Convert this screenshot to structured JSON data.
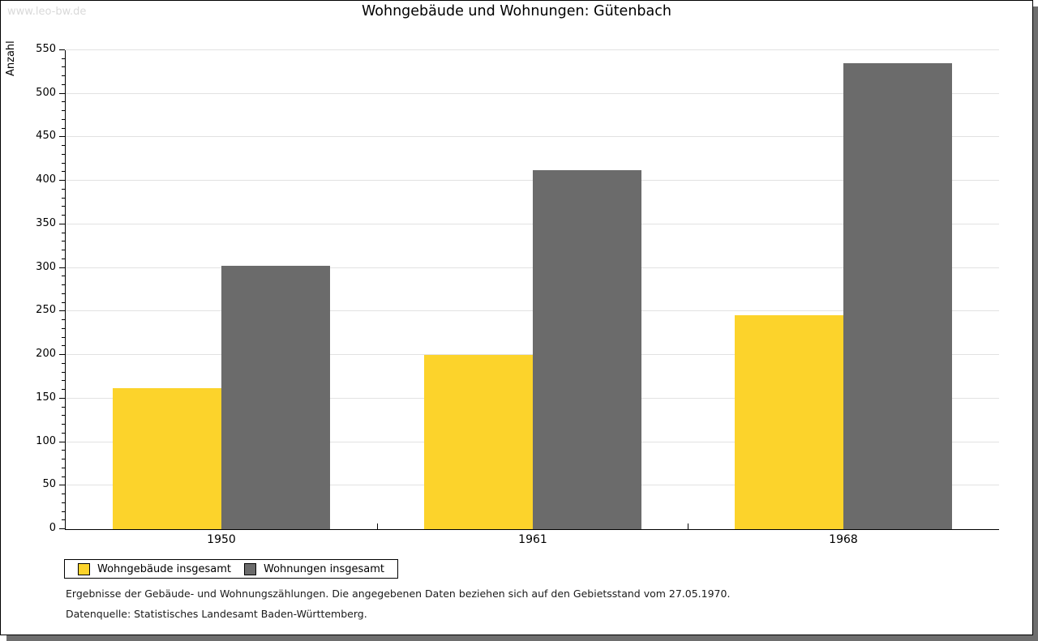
{
  "watermark": "www.leo-bw.de",
  "chart_data": {
    "type": "bar",
    "title": "Wohngebäude und Wohnungen: Gütenbach",
    "categories": [
      "1950",
      "1961",
      "1968"
    ],
    "series": [
      {
        "name": "Wohngebäude insgesamt",
        "color": "#FCD32B",
        "values": [
          162,
          200,
          246
        ]
      },
      {
        "name": "Wohnungen insgesamt",
        "color": "#6B6B6B",
        "values": [
          302,
          412,
          535
        ]
      }
    ],
    "xlabel": "",
    "ylabel": "Anzahl",
    "ylim": [
      0,
      550
    ],
    "ytick_step": 50,
    "yminor_step": 10,
    "grid": true,
    "legend_position": "bottom-left"
  },
  "footnotes": [
    "Ergebnisse der Gebäude- und Wohnungszählungen. Die angegebenen Daten beziehen sich auf den Gebietsstand vom 27.05.1970.",
    "Datenquelle: Statistisches Landesamt Baden-Württemberg."
  ],
  "colors": {
    "grid": "#E2E2E2",
    "axis": "#000000",
    "watermark": "#D9D9D9",
    "page_shadow": "#6E6E6E",
    "text": "#000000"
  }
}
